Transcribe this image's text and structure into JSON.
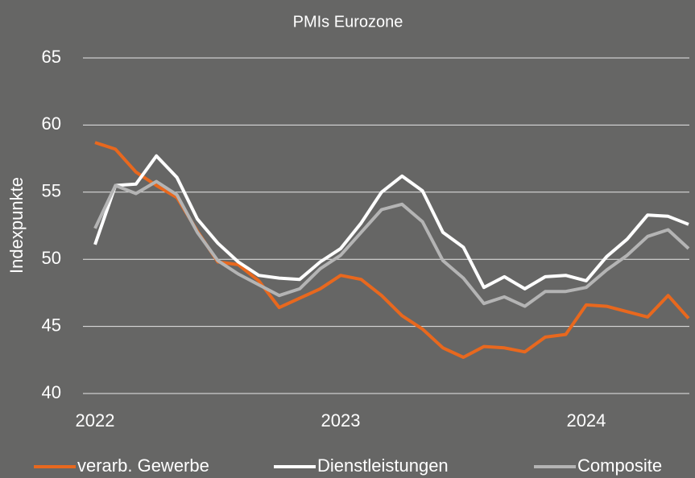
{
  "chart_data": {
    "type": "line",
    "title": "PMIs Eurozone",
    "ylabel": "Indexpunkte",
    "categories": [
      "2022",
      null,
      null,
      null,
      null,
      null,
      null,
      null,
      null,
      null,
      null,
      null,
      "2023",
      null,
      null,
      null,
      null,
      null,
      null,
      null,
      null,
      null,
      null,
      null,
      "2024",
      null,
      null,
      null,
      null,
      null
    ],
    "series": [
      {
        "name": "verarb. Gewerbe",
        "color": "#e8681e",
        "values": [
          58.7,
          58.2,
          56.5,
          55.5,
          54.6,
          52.1,
          49.8,
          49.6,
          48.4,
          46.4,
          47.1,
          47.8,
          48.8,
          48.5,
          47.3,
          45.8,
          44.8,
          43.4,
          42.7,
          43.5,
          43.4,
          43.1,
          44.2,
          44.4,
          46.6,
          46.5,
          46.1,
          45.7,
          47.3,
          45.6
        ]
      },
      {
        "name": "Dienstleistungen",
        "color": "#ffffff",
        "values": [
          51.1,
          55.5,
          55.6,
          57.7,
          56.1,
          53.0,
          51.2,
          49.8,
          48.8,
          48.6,
          48.5,
          49.8,
          50.8,
          52.7,
          55.0,
          56.2,
          55.1,
          52.0,
          50.9,
          47.9,
          48.7,
          47.8,
          48.7,
          48.8,
          48.4,
          50.2,
          51.5,
          53.3,
          53.2,
          52.6
        ]
      },
      {
        "name": "Composite",
        "color": "#b4b4b4",
        "values": [
          52.3,
          55.5,
          54.9,
          55.8,
          54.8,
          52.0,
          49.9,
          48.9,
          48.1,
          47.3,
          47.8,
          49.3,
          50.3,
          52.0,
          53.7,
          54.1,
          52.8,
          49.9,
          48.6,
          46.7,
          47.2,
          46.5,
          47.6,
          47.6,
          47.9,
          49.2,
          50.3,
          51.7,
          52.2,
          50.8
        ]
      }
    ],
    "ylim": [
      40,
      65
    ],
    "yticks": [
      40,
      45,
      50,
      55,
      60,
      65
    ],
    "grid": true
  }
}
